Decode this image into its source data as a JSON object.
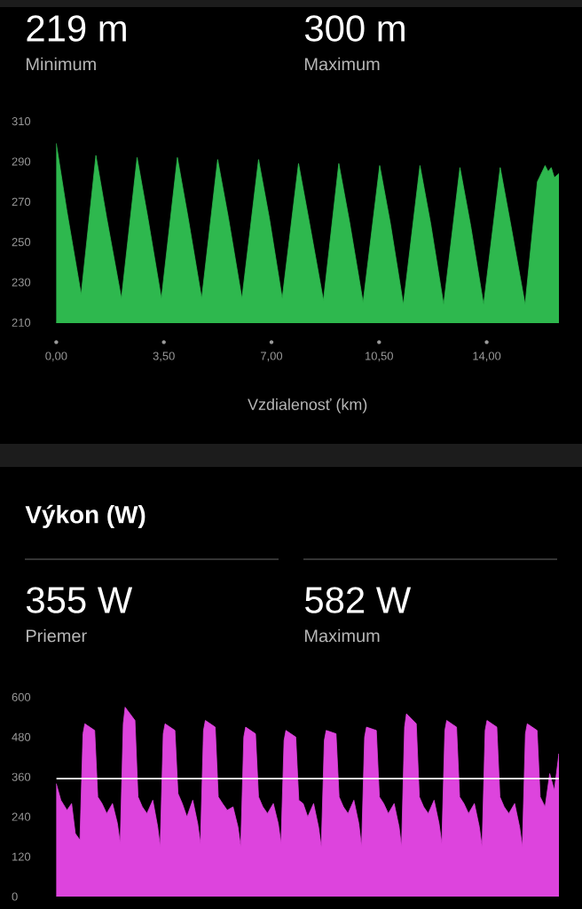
{
  "chart_data": [
    {
      "type": "area",
      "color": "#2eb84e",
      "xlabel": "Vzdialenosť (km)",
      "annotations": [
        "219 m",
        "Minimum",
        "300 m",
        "Maximum"
      ],
      "x": [
        0,
        0.35,
        0.81,
        1.29,
        1.64,
        2.12,
        2.63,
        2.98,
        3.42,
        3.94,
        4.29,
        4.73,
        5.25,
        5.6,
        6.04,
        6.58,
        6.93,
        7.35,
        7.88,
        8.23,
        8.69,
        9.19,
        9.54,
        9.98,
        10.52,
        10.87,
        11.29,
        11.83,
        12.18,
        12.6,
        13.13,
        13.48,
        13.9,
        14.44,
        14.79,
        15.25,
        15.65,
        15.9,
        16.0,
        16.1,
        16.2,
        16.35
      ],
      "values": [
        299,
        265,
        224,
        293,
        262,
        222,
        292,
        262,
        222,
        292,
        262,
        222,
        291,
        262,
        222,
        291,
        262,
        222,
        289,
        260,
        221,
        289,
        260,
        220,
        288,
        259,
        219,
        288,
        259,
        219,
        287,
        258,
        219,
        287,
        258,
        219,
        280,
        288,
        285,
        287,
        282,
        284
      ],
      "xlim": [
        0,
        16.35
      ],
      "ylim": [
        210,
        310
      ],
      "xticks": [
        {
          "value": 0,
          "label": "0,00"
        },
        {
          "value": 3.5,
          "label": "3,50"
        },
        {
          "value": 7,
          "label": "7,00"
        },
        {
          "value": 10.5,
          "label": "10,50"
        },
        {
          "value": 14,
          "label": "14,00"
        }
      ],
      "yticks": [
        210,
        230,
        250,
        270,
        290,
        310
      ]
    },
    {
      "type": "area",
      "color": "#dd44dd",
      "title": "Výkon (W)",
      "annotations": [
        "355 W",
        "Priemer",
        "582 W",
        "Maximum"
      ],
      "x": [
        0,
        0.15,
        0.35,
        0.5,
        0.62,
        0.77,
        0.87,
        0.93,
        1.25,
        1.35,
        1.49,
        1.64,
        1.83,
        1.99,
        2.08,
        2.18,
        2.24,
        2.56,
        2.66,
        2.8,
        2.95,
        3.14,
        3.3,
        3.38,
        3.48,
        3.54,
        3.86,
        3.96,
        4.1,
        4.25,
        4.44,
        4.6,
        4.69,
        4.79,
        4.85,
        5.17,
        5.27,
        5.41,
        5.56,
        5.75,
        5.91,
        6.0,
        6.1,
        6.16,
        6.48,
        6.58,
        6.72,
        6.87,
        7.06,
        7.22,
        7.31,
        7.41,
        7.47,
        7.79,
        7.89,
        8.03,
        8.18,
        8.37,
        8.53,
        8.62,
        8.72,
        8.78,
        9.1,
        9.2,
        9.34,
        9.49,
        9.68,
        9.84,
        9.93,
        10.03,
        10.09,
        10.41,
        10.51,
        10.65,
        10.8,
        10.99,
        11.15,
        11.23,
        11.33,
        11.39,
        11.71,
        11.81,
        11.95,
        12.1,
        12.29,
        12.45,
        12.54,
        12.64,
        12.7,
        13.02,
        13.12,
        13.26,
        13.41,
        13.6,
        13.76,
        13.85,
        13.95,
        14.01,
        14.33,
        14.43,
        14.57,
        14.72,
        14.91,
        15.07,
        15.16,
        15.26,
        15.32,
        15.64,
        15.74,
        15.9,
        16.05,
        16.2,
        16.35
      ],
      "values": [
        340,
        290,
        260,
        280,
        190,
        170,
        490,
        520,
        500,
        300,
        280,
        250,
        280,
        220,
        160,
        520,
        570,
        530,
        300,
        270,
        250,
        290,
        210,
        150,
        490,
        520,
        500,
        310,
        280,
        240,
        290,
        220,
        160,
        500,
        530,
        510,
        300,
        280,
        260,
        270,
        210,
        150,
        480,
        510,
        490,
        300,
        270,
        250,
        280,
        220,
        160,
        470,
        500,
        480,
        290,
        280,
        240,
        280,
        210,
        150,
        470,
        500,
        490,
        300,
        270,
        250,
        290,
        220,
        150,
        480,
        510,
        500,
        300,
        280,
        250,
        280,
        210,
        150,
        510,
        550,
        520,
        300,
        270,
        250,
        290,
        220,
        160,
        500,
        530,
        510,
        300,
        280,
        250,
        280,
        210,
        150,
        500,
        530,
        510,
        300,
        270,
        250,
        280,
        210,
        150,
        490,
        520,
        500,
        300,
        270,
        370,
        320,
        430
      ],
      "xlim": [
        0,
        16.35
      ],
      "ylim": [
        0,
        600
      ],
      "yticks": [
        0,
        120,
        240,
        360,
        480,
        600
      ],
      "tick_labels": "y",
      "ref_lines": [
        {
          "axis": "y",
          "value": 355,
          "color": "#ffffff"
        }
      ]
    }
  ]
}
